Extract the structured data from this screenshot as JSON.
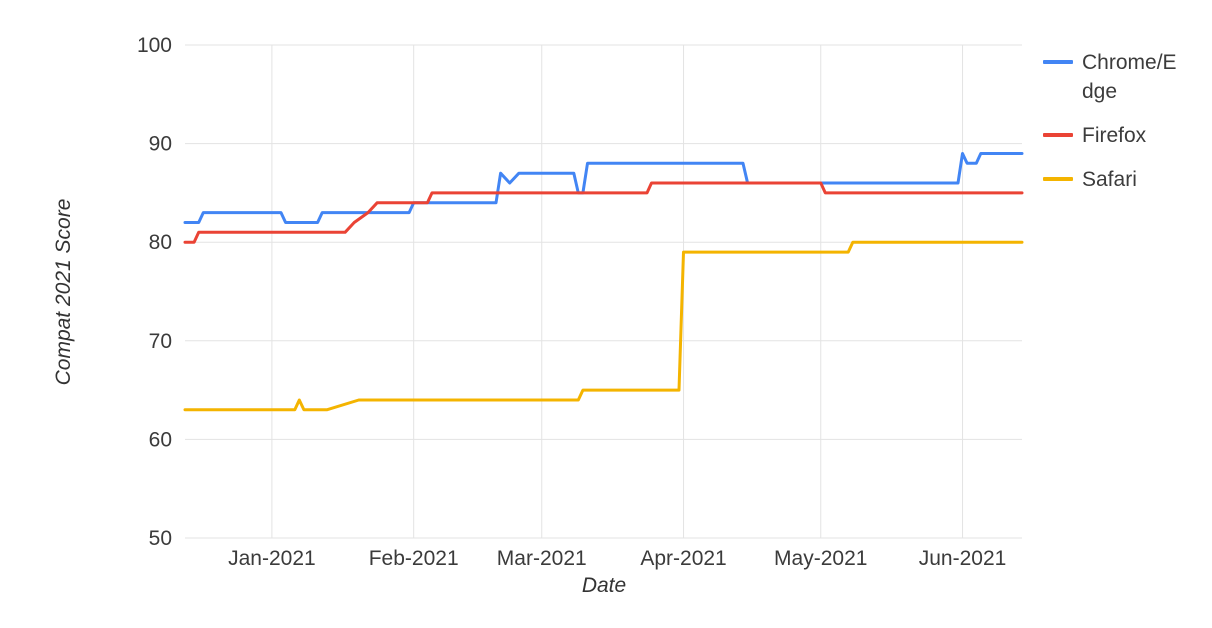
{
  "chart_data": {
    "type": "line",
    "xlabel": "Date",
    "ylabel": "Compat 2021 Score",
    "ylim": [
      50,
      100
    ],
    "yticks": [
      50,
      60,
      70,
      80,
      90,
      100
    ],
    "x_domain": [
      "2020-12-13",
      "2021-06-14"
    ],
    "xticks": [
      {
        "label": "Jan-2021",
        "date": "2021-01-01"
      },
      {
        "label": "Feb-2021",
        "date": "2021-02-01"
      },
      {
        "label": "Mar-2021",
        "date": "2021-03-01"
      },
      {
        "label": "Apr-2021",
        "date": "2021-04-01"
      },
      {
        "label": "May-2021",
        "date": "2021-05-01"
      },
      {
        "label": "Jun-2021",
        "date": "2021-06-01"
      }
    ],
    "grid": true,
    "grid_color": "#e3e3e3",
    "legend_position": "right",
    "series": [
      {
        "id": "chrome-edge",
        "name": "Chrome/Edge",
        "color": "#4285f4",
        "points": [
          [
            "2020-12-13",
            82
          ],
          [
            "2020-12-16",
            82
          ],
          [
            "2020-12-17",
            83
          ],
          [
            "2021-01-03",
            83
          ],
          [
            "2021-01-04",
            82
          ],
          [
            "2021-01-11",
            82
          ],
          [
            "2021-01-12",
            83
          ],
          [
            "2021-01-31",
            83
          ],
          [
            "2021-02-01",
            84
          ],
          [
            "2021-02-19",
            84
          ],
          [
            "2021-02-20",
            87
          ],
          [
            "2021-02-22",
            86
          ],
          [
            "2021-02-24",
            87
          ],
          [
            "2021-03-08",
            87
          ],
          [
            "2021-03-09",
            85
          ],
          [
            "2021-03-10",
            85
          ],
          [
            "2021-03-11",
            88
          ],
          [
            "2021-04-14",
            88
          ],
          [
            "2021-04-15",
            86
          ],
          [
            "2021-05-31",
            86
          ],
          [
            "2021-06-01",
            89
          ],
          [
            "2021-06-02",
            88
          ],
          [
            "2021-06-04",
            88
          ],
          [
            "2021-06-05",
            89
          ],
          [
            "2021-06-14",
            89
          ]
        ]
      },
      {
        "id": "firefox",
        "name": "Firefox",
        "color": "#ea4335",
        "points": [
          [
            "2020-12-13",
            80
          ],
          [
            "2020-12-15",
            80
          ],
          [
            "2020-12-16",
            81
          ],
          [
            "2021-01-17",
            81
          ],
          [
            "2021-01-19",
            82
          ],
          [
            "2021-01-22",
            83
          ],
          [
            "2021-01-24",
            84
          ],
          [
            "2021-02-04",
            84
          ],
          [
            "2021-02-05",
            85
          ],
          [
            "2021-03-24",
            85
          ],
          [
            "2021-03-25",
            86
          ],
          [
            "2021-05-01",
            86
          ],
          [
            "2021-05-02",
            85
          ],
          [
            "2021-06-14",
            85
          ]
        ]
      },
      {
        "id": "safari",
        "name": "Safari",
        "color": "#f4b400",
        "points": [
          [
            "2020-12-13",
            63
          ],
          [
            "2021-01-06",
            63
          ],
          [
            "2021-01-07",
            64
          ],
          [
            "2021-01-08",
            63
          ],
          [
            "2021-01-13",
            63
          ],
          [
            "2021-01-20",
            64
          ],
          [
            "2021-03-09",
            64
          ],
          [
            "2021-03-10",
            65
          ],
          [
            "2021-03-31",
            65
          ],
          [
            "2021-04-01",
            79
          ],
          [
            "2021-05-07",
            79
          ],
          [
            "2021-05-08",
            80
          ],
          [
            "2021-06-14",
            80
          ]
        ]
      }
    ]
  }
}
